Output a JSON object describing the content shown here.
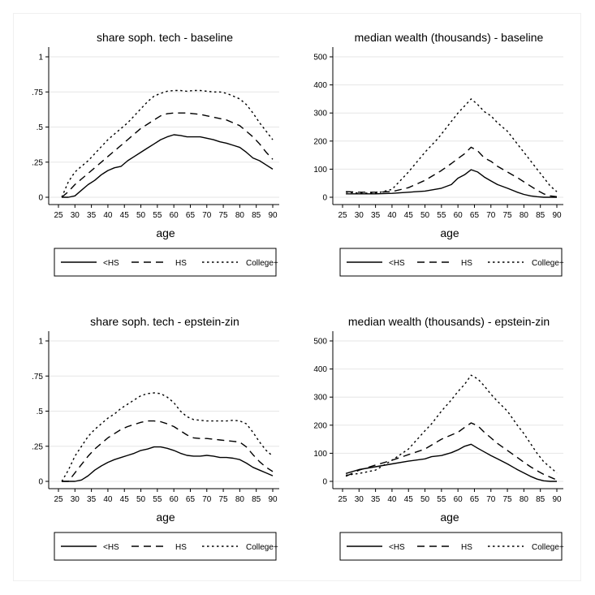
{
  "chart_data": [
    {
      "type": "line",
      "title": "share soph. tech - baseline",
      "xlabel": "age",
      "ylabel": "",
      "xlim": [
        25,
        90
      ],
      "ylim": [
        0,
        1
      ],
      "x_ticks": [
        25,
        30,
        35,
        40,
        45,
        50,
        55,
        60,
        65,
        70,
        75,
        80,
        85,
        90
      ],
      "y_ticks": [
        0,
        0.25,
        0.5,
        0.75,
        1
      ],
      "y_tick_labels": [
        "0",
        ".25",
        ".5",
        ".75",
        "1"
      ],
      "grid": true,
      "legend": [
        "<HS",
        "HS",
        "College+"
      ],
      "series": [
        {
          "name": "<HS",
          "style": "solid",
          "x": [
            26,
            28,
            30,
            32,
            34,
            36,
            38,
            40,
            42,
            44,
            46,
            48,
            50,
            52,
            54,
            56,
            58,
            60,
            62,
            64,
            66,
            68,
            70,
            72,
            74,
            76,
            78,
            80,
            82,
            84,
            86,
            88,
            90
          ],
          "y": [
            0,
            0,
            0.01,
            0.05,
            0.09,
            0.12,
            0.16,
            0.19,
            0.21,
            0.22,
            0.26,
            0.29,
            0.32,
            0.35,
            0.38,
            0.41,
            0.43,
            0.445,
            0.44,
            0.43,
            0.43,
            0.43,
            0.42,
            0.41,
            0.395,
            0.385,
            0.37,
            0.355,
            0.32,
            0.28,
            0.26,
            0.23,
            0.2
          ]
        },
        {
          "name": "HS",
          "style": "dash",
          "x": [
            26,
            28,
            30,
            32,
            34,
            36,
            38,
            40,
            42,
            44,
            46,
            48,
            50,
            52,
            54,
            56,
            58,
            60,
            62,
            64,
            66,
            68,
            70,
            72,
            74,
            76,
            78,
            80,
            82,
            84,
            86,
            88,
            90
          ],
          "y": [
            0,
            0.04,
            0.09,
            0.13,
            0.17,
            0.21,
            0.25,
            0.29,
            0.33,
            0.37,
            0.41,
            0.45,
            0.49,
            0.52,
            0.55,
            0.58,
            0.595,
            0.6,
            0.6,
            0.6,
            0.595,
            0.59,
            0.58,
            0.57,
            0.56,
            0.55,
            0.53,
            0.51,
            0.47,
            0.43,
            0.38,
            0.32,
            0.27
          ]
        },
        {
          "name": "College+",
          "style": "dot",
          "x": [
            26,
            28,
            30,
            32,
            34,
            36,
            38,
            40,
            42,
            44,
            46,
            48,
            50,
            52,
            54,
            56,
            58,
            60,
            62,
            64,
            66,
            68,
            70,
            72,
            74,
            76,
            78,
            80,
            82,
            84,
            86,
            88,
            90
          ],
          "y": [
            0,
            0.11,
            0.18,
            0.22,
            0.26,
            0.31,
            0.36,
            0.41,
            0.45,
            0.49,
            0.53,
            0.58,
            0.63,
            0.68,
            0.72,
            0.74,
            0.755,
            0.76,
            0.76,
            0.755,
            0.76,
            0.76,
            0.755,
            0.75,
            0.75,
            0.74,
            0.72,
            0.7,
            0.66,
            0.6,
            0.53,
            0.47,
            0.41
          ]
        }
      ]
    },
    {
      "type": "line",
      "title": "median wealth (thousands) - baseline",
      "xlabel": "age",
      "ylabel": "",
      "xlim": [
        25,
        90
      ],
      "ylim": [
        0,
        500
      ],
      "x_ticks": [
        25,
        30,
        35,
        40,
        45,
        50,
        55,
        60,
        65,
        70,
        75,
        80,
        85,
        90
      ],
      "y_ticks": [
        0,
        100,
        200,
        300,
        400,
        500
      ],
      "y_tick_labels": [
        "0",
        "100",
        "200",
        "300",
        "400",
        "500"
      ],
      "grid": true,
      "legend": [
        "<HS",
        "HS",
        "College+"
      ],
      "series": [
        {
          "name": "<HS",
          "style": "solid",
          "x": [
            26,
            30,
            35,
            40,
            45,
            50,
            55,
            58,
            60,
            62,
            64,
            66,
            68,
            70,
            72,
            75,
            78,
            80,
            82,
            84,
            86,
            88,
            90
          ],
          "y": [
            12,
            12,
            12,
            14,
            18,
            22,
            32,
            45,
            68,
            80,
            98,
            90,
            72,
            58,
            45,
            32,
            18,
            10,
            5,
            2,
            0,
            0,
            0
          ]
        },
        {
          "name": "HS",
          "style": "dash",
          "x": [
            26,
            30,
            35,
            40,
            45,
            50,
            55,
            58,
            60,
            62,
            64,
            66,
            68,
            70,
            72,
            75,
            78,
            80,
            82,
            84,
            86,
            88,
            90
          ],
          "y": [
            20,
            18,
            18,
            20,
            34,
            60,
            95,
            120,
            138,
            155,
            178,
            165,
            140,
            128,
            110,
            90,
            70,
            55,
            40,
            25,
            12,
            5,
            2
          ]
        },
        {
          "name": "College+",
          "style": "dot",
          "x": [
            26,
            30,
            35,
            40,
            45,
            50,
            54,
            56,
            58,
            60,
            62,
            64,
            66,
            68,
            70,
            72,
            75,
            78,
            80,
            82,
            84,
            86,
            88,
            90
          ],
          "y": [
            18,
            15,
            14,
            28,
            90,
            160,
            210,
            240,
            270,
            300,
            325,
            350,
            330,
            305,
            290,
            265,
            235,
            190,
            160,
            130,
            100,
            70,
            40,
            20
          ]
        }
      ]
    },
    {
      "type": "line",
      "title": "share soph. tech - epstein-zin",
      "xlabel": "age",
      "ylabel": "",
      "xlim": [
        25,
        90
      ],
      "ylim": [
        0,
        1
      ],
      "x_ticks": [
        25,
        30,
        35,
        40,
        45,
        50,
        55,
        60,
        65,
        70,
        75,
        80,
        85,
        90
      ],
      "y_ticks": [
        0,
        0.25,
        0.5,
        0.75,
        1
      ],
      "y_tick_labels": [
        "0",
        ".25",
        ".5",
        ".75",
        "1"
      ],
      "grid": true,
      "legend": [
        "<HS",
        "HS",
        "College+"
      ],
      "series": [
        {
          "name": "<HS",
          "style": "solid",
          "x": [
            26,
            28,
            30,
            32,
            34,
            36,
            38,
            40,
            42,
            44,
            46,
            48,
            50,
            52,
            54,
            56,
            58,
            60,
            62,
            64,
            66,
            68,
            70,
            72,
            74,
            76,
            78,
            80,
            82,
            84,
            86,
            88,
            90
          ],
          "y": [
            0,
            0,
            0,
            0.01,
            0.04,
            0.08,
            0.11,
            0.135,
            0.155,
            0.17,
            0.185,
            0.2,
            0.22,
            0.23,
            0.245,
            0.245,
            0.235,
            0.22,
            0.2,
            0.185,
            0.18,
            0.18,
            0.185,
            0.18,
            0.17,
            0.17,
            0.165,
            0.155,
            0.13,
            0.1,
            0.08,
            0.06,
            0.04
          ]
        },
        {
          "name": "HS",
          "style": "dash",
          "x": [
            26,
            28,
            30,
            32,
            34,
            36,
            38,
            40,
            42,
            44,
            46,
            48,
            50,
            52,
            54,
            56,
            58,
            60,
            62,
            64,
            66,
            68,
            70,
            72,
            74,
            76,
            78,
            80,
            82,
            84,
            86,
            88,
            90
          ],
          "y": [
            0,
            0,
            0.06,
            0.12,
            0.18,
            0.23,
            0.27,
            0.31,
            0.34,
            0.37,
            0.39,
            0.405,
            0.42,
            0.43,
            0.43,
            0.425,
            0.41,
            0.39,
            0.36,
            0.33,
            0.31,
            0.305,
            0.305,
            0.3,
            0.295,
            0.29,
            0.285,
            0.28,
            0.245,
            0.19,
            0.14,
            0.1,
            0.07
          ]
        },
        {
          "name": "College+",
          "style": "dot",
          "x": [
            26,
            28,
            30,
            32,
            34,
            36,
            38,
            40,
            42,
            44,
            46,
            48,
            50,
            52,
            54,
            56,
            58,
            60,
            62,
            64,
            66,
            68,
            70,
            72,
            74,
            76,
            78,
            80,
            82,
            84,
            86,
            88,
            90
          ],
          "y": [
            0,
            0.08,
            0.18,
            0.25,
            0.32,
            0.37,
            0.41,
            0.45,
            0.48,
            0.52,
            0.55,
            0.58,
            0.61,
            0.625,
            0.63,
            0.625,
            0.6,
            0.56,
            0.5,
            0.46,
            0.44,
            0.435,
            0.43,
            0.43,
            0.43,
            0.43,
            0.435,
            0.43,
            0.41,
            0.35,
            0.28,
            0.22,
            0.18
          ]
        }
      ]
    },
    {
      "type": "line",
      "title": "median wealth (thousands) - epstein-zin",
      "xlabel": "age",
      "ylabel": "",
      "xlim": [
        25,
        90
      ],
      "ylim": [
        0,
        500
      ],
      "x_ticks": [
        25,
        30,
        35,
        40,
        45,
        50,
        55,
        60,
        65,
        70,
        75,
        80,
        85,
        90
      ],
      "y_ticks": [
        0,
        100,
        200,
        300,
        400,
        500
      ],
      "y_tick_labels": [
        "0",
        "100",
        "200",
        "300",
        "400",
        "500"
      ],
      "grid": true,
      "legend": [
        "<HS",
        "HS",
        "College+"
      ],
      "series": [
        {
          "name": "<HS",
          "style": "solid",
          "x": [
            26,
            30,
            35,
            40,
            45,
            50,
            52,
            55,
            58,
            60,
            62,
            64,
            66,
            68,
            70,
            72,
            75,
            78,
            80,
            82,
            84,
            86,
            88,
            90
          ],
          "y": [
            28,
            42,
            52,
            62,
            72,
            80,
            88,
            92,
            102,
            112,
            125,
            132,
            118,
            105,
            92,
            80,
            62,
            42,
            30,
            18,
            8,
            2,
            0,
            0
          ]
        },
        {
          "name": "HS",
          "style": "dash",
          "x": [
            26,
            30,
            35,
            40,
            45,
            50,
            55,
            58,
            60,
            62,
            64,
            66,
            68,
            70,
            72,
            75,
            78,
            80,
            82,
            84,
            86,
            88,
            90
          ],
          "y": [
            18,
            40,
            58,
            75,
            95,
            115,
            150,
            165,
            175,
            192,
            208,
            198,
            175,
            155,
            135,
            110,
            85,
            68,
            52,
            38,
            25,
            15,
            5
          ]
        },
        {
          "name": "College+",
          "style": "dot",
          "x": [
            26,
            30,
            35,
            40,
            45,
            50,
            52,
            55,
            58,
            60,
            62,
            64,
            66,
            68,
            70,
            72,
            75,
            78,
            80,
            82,
            84,
            86,
            88,
            90
          ],
          "y": [
            22,
            28,
            40,
            75,
            115,
            180,
            205,
            250,
            290,
            320,
            345,
            378,
            365,
            340,
            310,
            285,
            250,
            200,
            170,
            135,
            100,
            70,
            50,
            30
          ]
        }
      ]
    }
  ]
}
